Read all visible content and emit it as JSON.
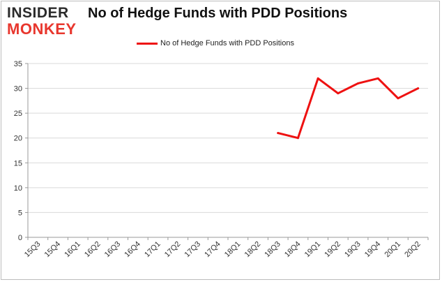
{
  "header": {
    "logo_line1": "INSIDER",
    "logo_line2": "MONKEY",
    "logo_accent": "#e8372e",
    "logo_dark": "#2b2b2b"
  },
  "chart_data": {
    "type": "line",
    "title": "No of Hedge Funds with PDD Positions",
    "xlabel": "",
    "ylabel": "",
    "categories": [
      "15Q3",
      "15Q4",
      "16Q1",
      "16Q2",
      "16Q3",
      "16Q4",
      "17Q1",
      "17Q2",
      "17Q3",
      "17Q4",
      "18Q1",
      "18Q2",
      "18Q3",
      "18Q4",
      "19Q1",
      "19Q2",
      "19Q3",
      "19Q4",
      "20Q1",
      "20Q2"
    ],
    "series": [
      {
        "name": "No of Hedge Funds with PDD Positions",
        "color": "#ee1111",
        "values": [
          null,
          null,
          null,
          null,
          null,
          null,
          null,
          null,
          null,
          null,
          null,
          null,
          21,
          20,
          32,
          29,
          31,
          32,
          28,
          30
        ]
      }
    ],
    "ylim": [
      0,
      35
    ],
    "yticks": [
      0,
      5,
      10,
      15,
      20,
      25,
      30,
      35
    ],
    "grid": true,
    "legend_position": "top-center"
  }
}
